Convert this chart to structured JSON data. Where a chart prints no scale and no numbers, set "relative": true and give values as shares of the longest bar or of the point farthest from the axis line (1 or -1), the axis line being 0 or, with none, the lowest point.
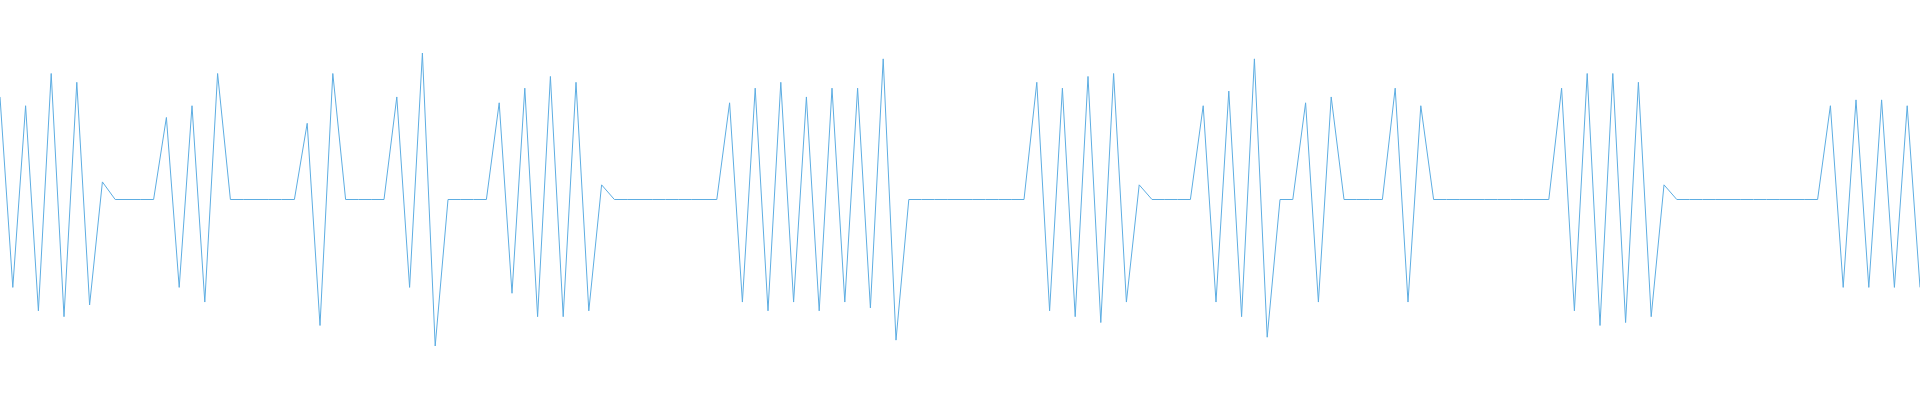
{
  "chart_data": {
    "type": "line",
    "relative": true,
    "color": "#5dade2",
    "marker": "none",
    "tick_labels": false,
    "categories": [
      null,
      null,
      null,
      null,
      null,
      null,
      null,
      null,
      null,
      null,
      null,
      null,
      null,
      null,
      null,
      null,
      null,
      null,
      null,
      null,
      null,
      null,
      null,
      null,
      null,
      null,
      null,
      null,
      null,
      null,
      null,
      null,
      null,
      null,
      null,
      null,
      null,
      null,
      null,
      null,
      null,
      null,
      null,
      null,
      null,
      null,
      null,
      null,
      null,
      null,
      null,
      null,
      null,
      null,
      null,
      null,
      null,
      null,
      null,
      null,
      null,
      null,
      null,
      null,
      null,
      null,
      null,
      null,
      null,
      null,
      null,
      null,
      null,
      null,
      null,
      null,
      null,
      null,
      null,
      null,
      null,
      null,
      null,
      null,
      null,
      null,
      null,
      null,
      null,
      null,
      null,
      null,
      null,
      null,
      null,
      null,
      null,
      null,
      null,
      null,
      null,
      null,
      null,
      null,
      null,
      null,
      null,
      null,
      null,
      null,
      null,
      null,
      null,
      null,
      null,
      null,
      null,
      null,
      null,
      null,
      null,
      null,
      null,
      null,
      null,
      null,
      null,
      null,
      null,
      null,
      null,
      null,
      null,
      null,
      null,
      null,
      null,
      null,
      null,
      null,
      null,
      null,
      null,
      null,
      null,
      null,
      null,
      null,
      null,
      null,
      null
    ],
    "values": [
      0.85,
      0.2,
      0.82,
      0.12,
      0.93,
      0.1,
      0.9,
      0.14,
      0.56,
      0.5,
      0.5,
      0.5,
      0.5,
      0.78,
      0.2,
      0.82,
      0.15,
      0.93,
      0.5,
      0.5,
      0.5,
      0.5,
      0.5,
      0.5,
      0.76,
      0.07,
      0.93,
      0.5,
      0.5,
      0.5,
      0.5,
      0.85,
      0.2,
      1,
      0,
      0.5,
      0.5,
      0.5,
      0.5,
      0.83,
      0.18,
      0.88,
      0.1,
      0.92,
      0.1,
      0.9,
      0.12,
      0.55,
      0.5,
      0.5,
      0.5,
      0.5,
      0.5,
      0.5,
      0.5,
      0.5,
      0.5,
      0.83,
      0.15,
      0.88,
      0.12,
      0.9,
      0.15,
      0.85,
      0.12,
      0.88,
      0.15,
      0.88,
      0.13,
      0.98,
      0.02,
      0.5,
      0.5,
      0.5,
      0.5,
      0.5,
      0.5,
      0.5,
      0.5,
      0.5,
      0.5,
      0.9,
      0.12,
      0.88,
      0.1,
      0.92,
      0.08,
      0.93,
      0.15,
      0.55,
      0.5,
      0.5,
      0.5,
      0.5,
      0.82,
      0.15,
      0.87,
      0.1,
      0.98,
      0.03,
      0.5,
      0.5,
      0.83,
      0.15,
      0.85,
      0.5,
      0.5,
      0.5,
      0.5,
      0.88,
      0.15,
      0.82,
      0.5,
      0.5,
      0.5,
      0.5,
      0.5,
      0.5,
      0.5,
      0.5,
      0.5,
      0.5,
      0.88,
      0.12,
      0.93,
      0.07,
      0.93,
      0.08,
      0.9,
      0.1,
      0.55,
      0.5,
      0.5,
      0.5,
      0.5,
      0.5,
      0.5,
      0.5,
      0.5,
      0.5,
      0.5,
      0.5,
      0.5,
      0.82,
      0.2,
      0.84,
      0.2,
      0.84,
      0.2,
      0.82,
      0.2
    ]
  }
}
